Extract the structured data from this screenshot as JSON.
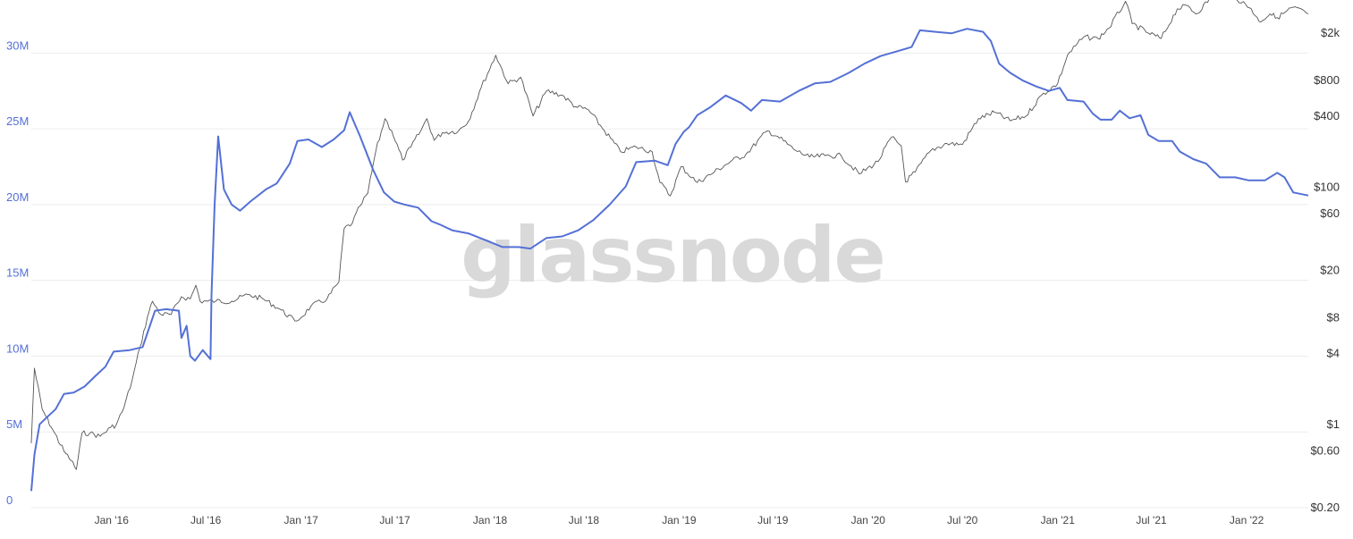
{
  "watermark": "glassnode",
  "chart_data": {
    "type": "line",
    "title": "",
    "xlabel": "",
    "x_ticks": [
      "Jan '16",
      "Jul '16",
      "Jan '17",
      "Jul '17",
      "Jan '18",
      "Jul '18",
      "Jan '19",
      "Jul '19",
      "Jan '20",
      "Jul '20",
      "Jan '21",
      "Jul '21",
      "Jan '22"
    ],
    "x_range": [
      "2015-07-30",
      "2022-04-30"
    ],
    "y_left": {
      "ticks": [
        0,
        5000000,
        10000000,
        15000000,
        20000000,
        25000000,
        30000000
      ],
      "tick_labels": [
        "0",
        "5M",
        "10M",
        "15M",
        "20M",
        "25M",
        "30M"
      ],
      "range": [
        0,
        33500000
      ],
      "color": "#5470d6"
    },
    "y_right": {
      "scale": "log",
      "ticks": [
        0.2,
        0.6,
        1,
        4,
        8,
        20,
        60,
        100,
        400,
        800,
        2000
      ],
      "tick_labels": [
        "$0.20",
        "$0.60",
        "$1",
        "$4",
        "$8",
        "$20",
        "$60",
        "$100",
        "$400",
        "$800",
        "$2k"
      ],
      "range": [
        0.2,
        3800
      ],
      "color": "#333333"
    },
    "series": [
      {
        "axis": "left",
        "color": "#5470d6",
        "points": [
          [
            "2015-07-30",
            1100000
          ],
          [
            "2015-08-05",
            3500000
          ],
          [
            "2015-08-15",
            5500000
          ],
          [
            "2015-08-30",
            6000000
          ],
          [
            "2015-09-15",
            6500000
          ],
          [
            "2015-10-01",
            7500000
          ],
          [
            "2015-10-20",
            7600000
          ],
          [
            "2015-11-10",
            8000000
          ],
          [
            "2015-12-01",
            8700000
          ],
          [
            "2015-12-20",
            9300000
          ],
          [
            "2016-01-05",
            10300000
          ],
          [
            "2016-02-05",
            10400000
          ],
          [
            "2016-03-01",
            10600000
          ],
          [
            "2016-03-15",
            12000000
          ],
          [
            "2016-03-25",
            13000000
          ],
          [
            "2016-04-15",
            13100000
          ],
          [
            "2016-05-10",
            13000000
          ],
          [
            "2016-05-15",
            11200000
          ],
          [
            "2016-05-25",
            12000000
          ],
          [
            "2016-06-01",
            10000000
          ],
          [
            "2016-06-10",
            9700000
          ],
          [
            "2016-06-25",
            10400000
          ],
          [
            "2016-07-10",
            9800000
          ],
          [
            "2016-07-12",
            14000000
          ],
          [
            "2016-07-18",
            20000000
          ],
          [
            "2016-07-25",
            24500000
          ],
          [
            "2016-08-05",
            21000000
          ],
          [
            "2016-08-20",
            20000000
          ],
          [
            "2016-09-05",
            19600000
          ],
          [
            "2016-09-25",
            20200000
          ],
          [
            "2016-10-25",
            21000000
          ],
          [
            "2016-11-15",
            21400000
          ],
          [
            "2016-12-10",
            22700000
          ],
          [
            "2016-12-25",
            24200000
          ],
          [
            "2017-01-15",
            24300000
          ],
          [
            "2017-02-10",
            23800000
          ],
          [
            "2017-03-05",
            24300000
          ],
          [
            "2017-03-25",
            24900000
          ],
          [
            "2017-04-05",
            26100000
          ],
          [
            "2017-04-25",
            24500000
          ],
          [
            "2017-05-20",
            22300000
          ],
          [
            "2017-06-10",
            20800000
          ],
          [
            "2017-06-30",
            20200000
          ],
          [
            "2017-07-20",
            20000000
          ],
          [
            "2017-08-15",
            19800000
          ],
          [
            "2017-09-10",
            18900000
          ],
          [
            "2017-09-25",
            18700000
          ],
          [
            "2017-10-20",
            18300000
          ],
          [
            "2017-11-20",
            18100000
          ],
          [
            "2017-12-20",
            17700000
          ],
          [
            "2018-01-25",
            17200000
          ],
          [
            "2018-02-25",
            17200000
          ],
          [
            "2018-03-20",
            17100000
          ],
          [
            "2018-04-20",
            17800000
          ],
          [
            "2018-05-20",
            17900000
          ],
          [
            "2018-06-20",
            18300000
          ],
          [
            "2018-07-20",
            19000000
          ],
          [
            "2018-08-20",
            20000000
          ],
          [
            "2018-09-20",
            21200000
          ],
          [
            "2018-10-10",
            22800000
          ],
          [
            "2018-11-15",
            22900000
          ],
          [
            "2018-12-10",
            22600000
          ],
          [
            "2018-12-25",
            24000000
          ],
          [
            "2019-01-10",
            24800000
          ],
          [
            "2019-01-20",
            25100000
          ],
          [
            "2019-02-05",
            25900000
          ],
          [
            "2019-03-01",
            26400000
          ],
          [
            "2019-04-01",
            27200000
          ],
          [
            "2019-05-01",
            26700000
          ],
          [
            "2019-05-20",
            26200000
          ],
          [
            "2019-06-10",
            26900000
          ],
          [
            "2019-07-15",
            26800000
          ],
          [
            "2019-08-20",
            27500000
          ],
          [
            "2019-09-20",
            28000000
          ],
          [
            "2019-10-20",
            28100000
          ],
          [
            "2019-11-25",
            28700000
          ],
          [
            "2019-12-25",
            29300000
          ],
          [
            "2020-01-25",
            29800000
          ],
          [
            "2020-02-25",
            30100000
          ],
          [
            "2020-03-25",
            30400000
          ],
          [
            "2020-04-10",
            31500000
          ],
          [
            "2020-05-10",
            31400000
          ],
          [
            "2020-06-10",
            31300000
          ],
          [
            "2020-07-10",
            31600000
          ],
          [
            "2020-08-10",
            31400000
          ],
          [
            "2020-08-25",
            30800000
          ],
          [
            "2020-09-10",
            29300000
          ],
          [
            "2020-10-01",
            28700000
          ],
          [
            "2020-10-25",
            28200000
          ],
          [
            "2020-11-20",
            27800000
          ],
          [
            "2020-12-15",
            27500000
          ],
          [
            "2021-01-05",
            27700000
          ],
          [
            "2021-01-20",
            26900000
          ],
          [
            "2021-02-20",
            26800000
          ],
          [
            "2021-03-10",
            26000000
          ],
          [
            "2021-03-25",
            25600000
          ],
          [
            "2021-04-15",
            25600000
          ],
          [
            "2021-05-01",
            26200000
          ],
          [
            "2021-05-20",
            25700000
          ],
          [
            "2021-06-10",
            25900000
          ],
          [
            "2021-06-25",
            24600000
          ],
          [
            "2021-07-15",
            24200000
          ],
          [
            "2021-08-10",
            24200000
          ],
          [
            "2021-08-25",
            23500000
          ],
          [
            "2021-09-20",
            23000000
          ],
          [
            "2021-10-15",
            22700000
          ],
          [
            "2021-11-10",
            21800000
          ],
          [
            "2021-12-10",
            21800000
          ],
          [
            "2022-01-05",
            21600000
          ],
          [
            "2022-02-05",
            21600000
          ],
          [
            "2022-03-01",
            22100000
          ],
          [
            "2022-03-15",
            21800000
          ],
          [
            "2022-04-01",
            20800000
          ],
          [
            "2022-04-30",
            20600000
          ]
        ]
      },
      {
        "axis": "right",
        "color": "#555555",
        "points": [
          [
            "2015-07-30",
            0.7
          ],
          [
            "2015-08-05",
            3.0
          ],
          [
            "2015-08-20",
            1.35
          ],
          [
            "2015-09-10",
            0.9
          ],
          [
            "2015-10-01",
            0.6
          ],
          [
            "2015-10-15",
            0.5
          ],
          [
            "2015-10-25",
            0.42
          ],
          [
            "2015-11-05",
            0.85
          ],
          [
            "2015-11-20",
            0.85
          ],
          [
            "2015-12-10",
            0.8
          ],
          [
            "2015-12-30",
            0.95
          ],
          [
            "2016-01-10",
            1.0
          ],
          [
            "2016-01-25",
            1.4
          ],
          [
            "2016-02-10",
            2.4
          ],
          [
            "2016-02-25",
            4.5
          ],
          [
            "2016-03-10",
            8.0
          ],
          [
            "2016-03-20",
            11.0
          ],
          [
            "2016-04-05",
            8.5
          ],
          [
            "2016-04-25",
            8.5
          ],
          [
            "2016-05-15",
            12.0
          ],
          [
            "2016-06-01",
            11.5
          ],
          [
            "2016-06-12",
            15.0
          ],
          [
            "2016-06-20",
            11.0
          ],
          [
            "2016-07-05",
            11.0
          ],
          [
            "2016-07-20",
            11.0
          ],
          [
            "2016-08-20",
            11.0
          ],
          [
            "2016-09-20",
            12.5
          ],
          [
            "2016-10-20",
            11.5
          ],
          [
            "2016-11-20",
            9.5
          ],
          [
            "2016-12-20",
            7.5
          ],
          [
            "2017-01-01",
            8.0
          ],
          [
            "2017-01-20",
            10.0
          ],
          [
            "2017-02-20",
            11.5
          ],
          [
            "2017-03-15",
            16.0
          ],
          [
            "2017-03-25",
            45.0
          ],
          [
            "2017-04-10",
            50.0
          ],
          [
            "2017-04-25",
            70.0
          ],
          [
            "2017-05-10",
            90.0
          ],
          [
            "2017-05-25",
            200.0
          ],
          [
            "2017-06-12",
            380.0
          ],
          [
            "2017-06-25",
            300.0
          ],
          [
            "2017-07-16",
            170.0
          ],
          [
            "2017-08-01",
            220.0
          ],
          [
            "2017-08-20",
            300.0
          ],
          [
            "2017-09-01",
            380.0
          ],
          [
            "2017-09-15",
            250.0
          ],
          [
            "2017-10-01",
            290.0
          ],
          [
            "2017-11-01",
            300.0
          ],
          [
            "2017-11-20",
            360.0
          ],
          [
            "2017-12-15",
            700.0
          ],
          [
            "2018-01-12",
            1300.0
          ],
          [
            "2018-02-05",
            750.0
          ],
          [
            "2018-03-01",
            850.0
          ],
          [
            "2018-03-25",
            400.0
          ],
          [
            "2018-04-20",
            650.0
          ],
          [
            "2018-05-20",
            600.0
          ],
          [
            "2018-06-15",
            480.0
          ],
          [
            "2018-07-10",
            450.0
          ],
          [
            "2018-08-10",
            300.0
          ],
          [
            "2018-09-10",
            200.0
          ],
          [
            "2018-10-10",
            220.0
          ],
          [
            "2018-11-10",
            200.0
          ],
          [
            "2018-11-25",
            110.0
          ],
          [
            "2018-12-15",
            85.0
          ],
          [
            "2019-01-05",
            150.0
          ],
          [
            "2019-02-05",
            110.0
          ],
          [
            "2019-03-10",
            135.0
          ],
          [
            "2019-04-10",
            165.0
          ],
          [
            "2019-05-10",
            190.0
          ],
          [
            "2019-06-20",
            300.0
          ],
          [
            "2019-07-10",
            270.0
          ],
          [
            "2019-08-10",
            210.0
          ],
          [
            "2019-09-10",
            180.0
          ],
          [
            "2019-10-10",
            185.0
          ],
          [
            "2019-11-10",
            185.0
          ],
          [
            "2019-12-15",
            130.0
          ],
          [
            "2020-01-20",
            165.0
          ],
          [
            "2020-02-15",
            265.0
          ],
          [
            "2020-03-05",
            225.0
          ],
          [
            "2020-03-13",
            112.0
          ],
          [
            "2020-04-01",
            135.0
          ],
          [
            "2020-05-01",
            205.0
          ],
          [
            "2020-06-01",
            235.0
          ],
          [
            "2020-07-01",
            230.0
          ],
          [
            "2020-08-01",
            380.0
          ],
          [
            "2020-09-01",
            430.0
          ],
          [
            "2020-10-01",
            365.0
          ],
          [
            "2020-11-01",
            400.0
          ],
          [
            "2020-12-01",
            600.0
          ],
          [
            "2021-01-01",
            750.0
          ],
          [
            "2021-01-20",
            1300.0
          ],
          [
            "2021-02-20",
            1850.0
          ],
          [
            "2021-03-20",
            1800.0
          ],
          [
            "2021-04-10",
            2200.0
          ],
          [
            "2021-05-12",
            3700.0
          ],
          [
            "2021-05-25",
            2400.0
          ],
          [
            "2021-06-25",
            2000.0
          ],
          [
            "2021-07-20",
            1800.0
          ],
          [
            "2021-08-20",
            3200.0
          ],
          [
            "2021-09-10",
            3400.0
          ],
          [
            "2021-09-25",
            2900.0
          ],
          [
            "2021-10-25",
            4000.0
          ],
          [
            "2021-11-10",
            4500.0
          ],
          [
            "2021-12-10",
            4000.0
          ],
          [
            "2022-01-10",
            3200.0
          ],
          [
            "2022-01-25",
            2500.0
          ],
          [
            "2022-02-15",
            2900.0
          ],
          [
            "2022-03-01",
            2700.0
          ],
          [
            "2022-04-01",
            3300.0
          ],
          [
            "2022-04-30",
            2900.0
          ]
        ]
      }
    ]
  }
}
